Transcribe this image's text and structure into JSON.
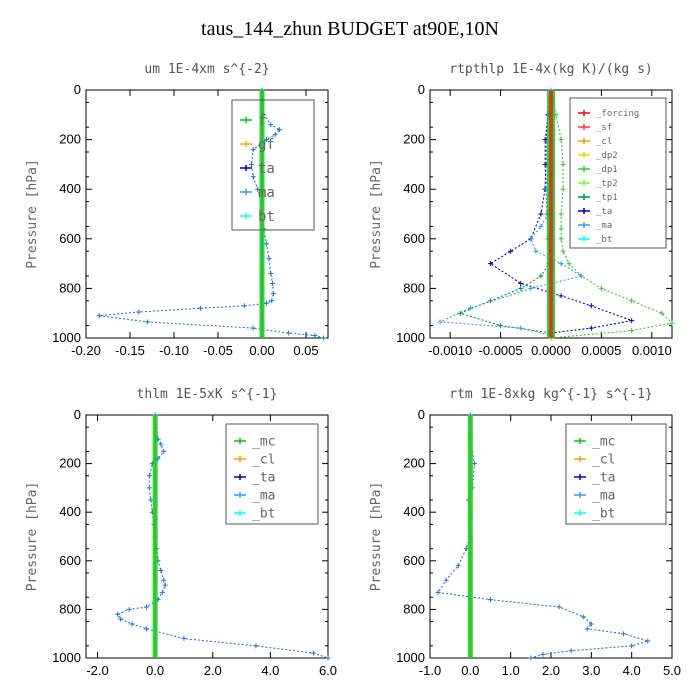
{
  "title": "taus_144_zhun  BUDGET at90E,10N",
  "colors": {
    "f": "#00cc00",
    "gf": "#ffa500",
    "ta": "#0000cc",
    "ma": "#3399ff",
    "bt": "#00ffff",
    "forcing": "#ff0000",
    "sf": "#ff3333",
    "cl": "#ff9900",
    "dp2": "#ffcc00",
    "dp1": "#33cc33",
    "tp2": "#66ff33",
    "tp1": "#009933",
    "mc": "#00cc00",
    "blue": "#1f77d9"
  },
  "chart_data": [
    {
      "type": "line",
      "title": "um  1E-4xm s^{-2}",
      "ylabel": "Pressure [hPa]",
      "xlim": [
        -0.2,
        0.075
      ],
      "ylim": [
        1000,
        0
      ],
      "xticks": [
        "-0.20",
        "-0.15",
        "-0.10",
        "-0.05",
        "0.00",
        "0.05"
      ],
      "xtick_values": [
        -0.2,
        -0.15,
        -0.1,
        -0.05,
        0.0,
        0.05
      ],
      "yticks": [
        "0",
        "200",
        "400",
        "600",
        "800",
        "1000"
      ],
      "legend": [
        "f",
        "gf",
        "ta",
        "ma",
        "bt"
      ],
      "series": [
        {
          "name": "f",
          "color": "f",
          "x": [
            0,
            0
          ],
          "y": [
            0,
            1000
          ]
        },
        {
          "name": "gf",
          "color": "gf",
          "x": [
            0,
            0
          ],
          "y": [
            0,
            1000
          ]
        },
        {
          "name": "ta",
          "color": "ta",
          "x": [
            0,
            0
          ],
          "y": [
            0,
            1000
          ]
        },
        {
          "name": "ma",
          "color": "ma",
          "x": [
            0,
            0
          ],
          "y": [
            0,
            1000
          ]
        },
        {
          "name": "bt",
          "color": "blue",
          "x": [
            0.0,
            0.002,
            0.01,
            0.02,
            0.015,
            0.005,
            -0.01,
            -0.012,
            -0.01,
            -0.005,
            0.0,
            0.0,
            0.002,
            0.005,
            0.008,
            0.01,
            0.012,
            0.013,
            0.011,
            0.005,
            -0.02,
            -0.07,
            -0.14,
            -0.185,
            -0.13,
            -0.01,
            0.03,
            0.06,
            0.07
          ],
          "y": [
            0,
            100,
            140,
            160,
            180,
            200,
            240,
            300,
            350,
            400,
            450,
            500,
            560,
            620,
            680,
            740,
            780,
            820,
            850,
            860,
            870,
            880,
            895,
            910,
            935,
            960,
            980,
            990,
            1000
          ]
        }
      ]
    },
    {
      "type": "line",
      "title": "rtpthlp  1E-4x(kg K)/(kg s)",
      "ylabel": "Pressure [hPa]",
      "xlim": [
        -0.0012,
        0.0012
      ],
      "ylim": [
        1000,
        0
      ],
      "xticks": [
        "-0.0010",
        "-0.0005",
        "0.0000",
        "0.0005",
        "0.0010"
      ],
      "xtick_values": [
        -0.001,
        -0.0005,
        0.0,
        0.0005,
        0.001
      ],
      "yticks": [
        "0",
        "200",
        "400",
        "600",
        "800",
        "1000"
      ],
      "legend": [
        "_forcing",
        "_sf",
        "_cl",
        "_dp2",
        "_dp1",
        "_tp2",
        "_tp1",
        "_ta",
        "_ma",
        "_bt"
      ],
      "series": [
        {
          "name": "_dp1",
          "color": "dp1",
          "x": [
            0.0,
            5e-05,
            0.0001,
            0.00012,
            0.00012,
            0.0001,
            0.0001,
            0.0001,
            0.00012,
            0.00018,
            0.0003,
            0.0005,
            0.0008,
            0.0011,
            0.0012,
            0.0008,
            0.0
          ],
          "y": [
            0,
            100,
            200,
            300,
            400,
            500,
            560,
            600,
            650,
            700,
            750,
            800,
            850,
            900,
            940,
            970,
            1000
          ]
        },
        {
          "name": "_tp1",
          "color": "tp1",
          "x": [
            0.0,
            -3e-05,
            -6e-05,
            -6e-05,
            -5e-05,
            -4e-05,
            -3e-05,
            -2e-05,
            -0.0001,
            -0.0003,
            -0.0006,
            -0.0009,
            -0.0005,
            0.0
          ],
          "y": [
            0,
            100,
            200,
            300,
            400,
            500,
            600,
            700,
            750,
            800,
            850,
            900,
            950,
            980
          ]
        },
        {
          "name": "_ta",
          "color": "ta",
          "x": [
            0.0,
            -3e-05,
            -5e-05,
            -5e-05,
            -6e-05,
            -0.0001,
            -0.0002,
            -0.0004,
            -0.0006,
            -0.0003,
            0.0001,
            0.0004,
            0.0008,
            0.0004,
            0.0
          ],
          "y": [
            0,
            100,
            200,
            300,
            400,
            500,
            600,
            650,
            700,
            780,
            830,
            870,
            930,
            960,
            980
          ]
        },
        {
          "name": "_ma",
          "color": "ma",
          "x": [
            0.0,
            0.0,
            -5e-05,
            -3e-05,
            -0.0001,
            -0.0002,
            -0.00015,
            0.0001,
            0.0003,
            -0.0002,
            -0.0008,
            -0.0011,
            -0.0003,
            0.0
          ],
          "y": [
            0,
            200,
            400,
            500,
            550,
            600,
            650,
            700,
            750,
            800,
            880,
            935,
            960,
            990
          ]
        },
        {
          "name": "_forcing",
          "color": "forcing",
          "x": [
            0,
            0
          ],
          "y": [
            0,
            1000
          ]
        }
      ]
    },
    {
      "type": "line",
      "title": "thlm  1E-5xK s^{-1}",
      "ylabel": "Pressure [hPa]",
      "xlim": [
        -2.4,
        6.0
      ],
      "ylim": [
        1000,
        0
      ],
      "xticks": [
        "-2.0",
        "0.0",
        "2.0",
        "4.0",
        "6.0"
      ],
      "xtick_values": [
        -2.0,
        0.0,
        2.0,
        4.0,
        6.0
      ],
      "yticks": [
        "0",
        "200",
        "400",
        "600",
        "800",
        "1000"
      ],
      "legend": [
        "_mc",
        "_cl",
        "_ta",
        "_ma",
        "_bt"
      ],
      "series": [
        {
          "name": "_mc",
          "color": "mc",
          "x": [
            0,
            0
          ],
          "y": [
            0,
            1000
          ]
        },
        {
          "name": "_bt",
          "color": "blue",
          "x": [
            0.0,
            0.1,
            0.2,
            0.3,
            0.1,
            -0.1,
            -0.2,
            -0.2,
            -0.15,
            -0.1,
            -0.05,
            0.0,
            0.05,
            0.1,
            0.2,
            0.3,
            0.35,
            0.25,
            0.1,
            -0.3,
            -0.9,
            -1.3,
            -1.2,
            -0.8,
            -0.3,
            1.0,
            3.5,
            5.5,
            6.0
          ],
          "y": [
            0,
            100,
            120,
            150,
            180,
            200,
            250,
            300,
            350,
            400,
            450,
            500,
            550,
            600,
            640,
            680,
            700,
            730,
            760,
            790,
            800,
            820,
            840,
            860,
            880,
            920,
            950,
            980,
            1000
          ]
        }
      ]
    },
    {
      "type": "line",
      "title": "rtm  1E-8xkg kg^{-1} s^{-1}",
      "ylabel": "Pressure [hPa]",
      "xlim": [
        -1.0,
        5.0
      ],
      "ylim": [
        1000,
        0
      ],
      "xticks": [
        "-1.0",
        "0.0",
        "1.0",
        "2.0",
        "3.0",
        "4.0",
        "5.0"
      ],
      "xtick_values": [
        -1.0,
        0.0,
        1.0,
        2.0,
        3.0,
        4.0,
        5.0
      ],
      "yticks": [
        "0",
        "200",
        "400",
        "600",
        "800",
        "1000"
      ],
      "legend": [
        "_mc",
        "_cl",
        "_ta",
        "_ma",
        "_bt"
      ],
      "series": [
        {
          "name": "_mc",
          "color": "mc",
          "x": [
            0,
            0
          ],
          "y": [
            0,
            1000
          ]
        },
        {
          "name": "_bt",
          "color": "blue",
          "x": [
            0.0,
            0.0,
            0.1,
            0.05,
            -0.05,
            0.0,
            0.0,
            -0.1,
            -0.3,
            -0.6,
            -0.8,
            0.5,
            2.2,
            2.8,
            3.0,
            2.9,
            3.8,
            4.4,
            4.0,
            2.5,
            1.8,
            1.5
          ],
          "y": [
            0,
            100,
            200,
            300,
            350,
            400,
            500,
            550,
            620,
            680,
            730,
            760,
            790,
            830,
            860,
            880,
            900,
            930,
            950,
            970,
            985,
            1000
          ]
        }
      ]
    }
  ]
}
